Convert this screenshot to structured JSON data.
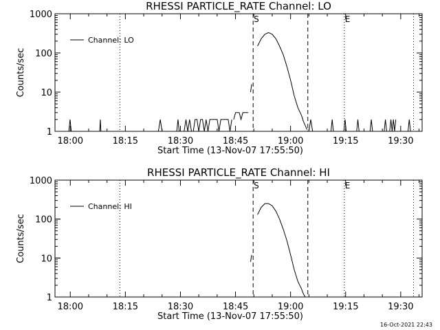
{
  "timestamp": "16-Oct-2021 22:43",
  "chart_data": [
    {
      "type": "line",
      "title": "RHESSI PARTICLE_RATE Channel: LO",
      "xlabel": "Start Time (13-Nov-07 17:55:50)",
      "ylabel": "Counts/sec",
      "yscale": "log",
      "ylim": [
        1,
        1000
      ],
      "xlim": [
        "17:55:50",
        "19:35:50"
      ],
      "x_ticks": [
        "18:00",
        "18:15",
        "18:30",
        "18:45",
        "19:00",
        "19:15",
        "19:30"
      ],
      "y_ticks": [
        "1",
        "10",
        "100",
        "1000"
      ],
      "legend": "Channel: LO",
      "legend_position": "top-left",
      "markers": [
        {
          "label": "S",
          "time": "18:49:48",
          "style": "dashed"
        },
        {
          "label": "",
          "time": "19:04:42",
          "style": "dashed"
        },
        {
          "label": "E",
          "time": "19:14:38",
          "style": "dotted"
        },
        {
          "label": "",
          "time": "18:13:30",
          "style": "dotted"
        },
        {
          "label": "",
          "time": "19:33:30",
          "style": "dotted"
        }
      ],
      "series": [
        {
          "name": "Channel: LO",
          "segments": [
            {
              "time": [
                "17:59:36",
                "17:59:56",
                "18:00:16"
              ],
              "counts": [
                1,
                2,
                1
              ]
            },
            {
              "time": [
                "18:08:00",
                "18:08:10",
                "18:08:20"
              ],
              "counts": [
                1,
                2,
                1
              ]
            },
            {
              "time": [
                "18:24:00",
                "18:24:30",
                "18:25:00"
              ],
              "counts": [
                1,
                2,
                1
              ]
            },
            {
              "time": [
                "18:29:00",
                "18:29:20",
                "18:29:40"
              ],
              "counts": [
                1,
                2,
                1
              ]
            },
            {
              "time": [
                "18:31:00",
                "18:31:30",
                "18:32:00",
                "18:32:30",
                "18:33:00"
              ],
              "counts": [
                1,
                2,
                1,
                2,
                1
              ]
            },
            {
              "time": [
                "18:33:30",
                "18:34:00",
                "18:34:30",
                "18:35:00",
                "18:35:30",
                "18:36:00",
                "18:36:30",
                "18:37:00",
                "18:37:30",
                "18:38:00",
                "18:39:00",
                "18:40:00",
                "18:40:30",
                "18:41:00",
                "18:42:00",
                "18:43:00",
                "18:43:30",
                "18:44:00"
              ],
              "counts": [
                1,
                2,
                2,
                1,
                2,
                2,
                1,
                2,
                1,
                2,
                2,
                2,
                1,
                2,
                2,
                2,
                1,
                2
              ]
            },
            {
              "time": [
                "18:44:30",
                "18:45:00",
                "18:46:00",
                "18:46:30",
                "18:47:00",
                "18:47:30",
                "18:48:00",
                "18:48:30"
              ],
              "counts": [
                2,
                3,
                3,
                2,
                3,
                3,
                3,
                3
              ]
            },
            {
              "time": [
                "18:49:05",
                "18:49:25"
              ],
              "counts": [
                10,
                16
              ]
            },
            {
              "time": [
                "18:51:00",
                "18:52:00",
                "18:53:00",
                "18:54:00",
                "18:55:00",
                "18:56:00",
                "18:57:00",
                "18:58:00",
                "18:59:00",
                "19:00:00",
                "19:01:00",
                "19:02:00",
                "19:03:00",
                "19:03:30",
                "19:04:00",
                "19:04:30"
              ],
              "counts": [
                150,
                230,
                300,
                330,
                300,
                230,
                150,
                90,
                45,
                20,
                8,
                4,
                2.5,
                1.8,
                1.4,
                1.1
              ]
            },
            {
              "time": [
                "19:05:00",
                "19:05:30",
                "19:06:00"
              ],
              "counts": [
                1,
                2,
                1
              ]
            },
            {
              "time": [
                "19:11:00",
                "19:11:20",
                "19:11:40"
              ],
              "counts": [
                1,
                2,
                1
              ]
            },
            {
              "time": [
                "19:14:30",
                "19:14:50",
                "19:15:10"
              ],
              "counts": [
                1,
                2,
                1
              ]
            },
            {
              "time": [
                "19:18:00",
                "19:18:20",
                "19:18:40"
              ],
              "counts": [
                1,
                2,
                1
              ]
            },
            {
              "time": [
                "19:21:40",
                "19:22:00",
                "19:22:20"
              ],
              "counts": [
                1,
                2,
                1
              ]
            },
            {
              "time": [
                "19:25:30",
                "19:25:50",
                "19:26:10"
              ],
              "counts": [
                1,
                2,
                1
              ]
            },
            {
              "time": [
                "19:27:00",
                "19:27:20",
                "19:27:40",
                "19:28:00",
                "19:28:20",
                "19:28:40"
              ],
              "counts": [
                1,
                2,
                1,
                2,
                1,
                2
              ]
            },
            {
              "time": [
                "19:32:00",
                "19:32:20",
                "19:32:40"
              ],
              "counts": [
                1,
                2,
                1
              ]
            }
          ]
        }
      ]
    },
    {
      "type": "line",
      "title": "RHESSI PARTICLE_RATE Channel: HI",
      "xlabel": "Start Time (13-Nov-07 17:55:50)",
      "ylabel": "Counts/sec",
      "yscale": "log",
      "ylim": [
        1,
        1000
      ],
      "xlim": [
        "17:55:50",
        "19:35:50"
      ],
      "x_ticks": [
        "18:00",
        "18:15",
        "18:30",
        "18:45",
        "19:00",
        "19:15",
        "19:30"
      ],
      "y_ticks": [
        "1",
        "10",
        "100",
        "1000"
      ],
      "legend": "Channel: HI",
      "legend_position": "top-left",
      "markers": [
        {
          "label": "S",
          "time": "18:49:48",
          "style": "dashed"
        },
        {
          "label": "",
          "time": "19:04:42",
          "style": "dashed"
        },
        {
          "label": "E",
          "time": "19:14:38",
          "style": "dotted"
        },
        {
          "label": "",
          "time": "18:13:30",
          "style": "dotted"
        },
        {
          "label": "",
          "time": "19:33:30",
          "style": "dotted"
        }
      ],
      "series": [
        {
          "name": "Channel: HI",
          "segments": [
            {
              "time": [
                "18:49:05",
                "18:49:25"
              ],
              "counts": [
                8,
                12
              ]
            },
            {
              "time": [
                "18:51:00",
                "18:52:00",
                "18:53:00",
                "18:54:00",
                "18:55:00",
                "18:56:00",
                "18:57:00",
                "18:58:00",
                "18:59:00",
                "19:00:00",
                "19:01:00",
                "19:02:00",
                "19:03:00",
                "19:03:30",
                "19:04:00"
              ],
              "counts": [
                130,
                200,
                250,
                250,
                220,
                160,
                100,
                55,
                28,
                12,
                5,
                2.5,
                1.6,
                1.2,
                1
              ]
            }
          ]
        }
      ]
    }
  ]
}
